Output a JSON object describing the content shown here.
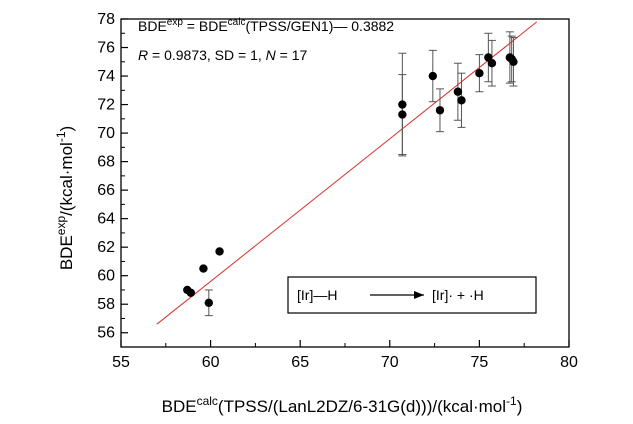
{
  "chart_data": {
    "type": "scatter",
    "xlim": [
      55,
      80
    ],
    "ylim": [
      55,
      78
    ],
    "x_ticks": [
      55,
      60,
      65,
      70,
      75,
      80
    ],
    "y_ticks": [
      56,
      58,
      60,
      62,
      64,
      66,
      68,
      70,
      72,
      74,
      76,
      78
    ],
    "xlabel": {
      "main": "BDE",
      "sup": "calc",
      "rest": "(TPSS/(LanL2DZ/6-31G(d)))/(kcal·mol",
      "unit_sup": "-1",
      "end": ")"
    },
    "ylabel": {
      "main": "BDE",
      "sup": "exp",
      "rest": "/(kcal·mol",
      "unit_sup": "-1",
      "end": ")"
    },
    "equation": {
      "lhs": "BDE",
      "lhs_sup": "exp",
      "eq": " = BDE",
      "rhs_sup": "calc",
      "rhs": "(TPSS/GEN1)— 0.3882"
    },
    "stats": {
      "r_label": "R",
      "r_value": " = 0.9873, SD = 1, ",
      "n_label": "N",
      "n_value": " = 17"
    },
    "fit_line": {
      "x": [
        57,
        78.2
      ],
      "y": [
        56.6,
        77.8
      ],
      "color": "#d9302a"
    },
    "series": [
      {
        "points": [
          {
            "x": 58.7,
            "y": 59.0
          },
          {
            "x": 58.9,
            "y": 58.8
          },
          {
            "x": 59.6,
            "y": 60.5
          },
          {
            "x": 59.9,
            "y": 58.1,
            "err": 0.9
          },
          {
            "x": 60.5,
            "y": 61.7
          },
          {
            "x": 70.7,
            "y": 72.0,
            "err": 3.6
          },
          {
            "x": 70.7,
            "y": 71.3,
            "err": 2.8
          },
          {
            "x": 72.4,
            "y": 74.0,
            "err": 1.8
          },
          {
            "x": 72.8,
            "y": 71.6,
            "err": 1.5
          },
          {
            "x": 73.8,
            "y": 72.9,
            "err": 2.0
          },
          {
            "x": 74.0,
            "y": 72.3,
            "err": 1.9
          },
          {
            "x": 75.0,
            "y": 74.2,
            "err": 1.3
          },
          {
            "x": 75.5,
            "y": 75.3,
            "err": 1.7
          },
          {
            "x": 75.7,
            "y": 74.9,
            "err": 1.6
          },
          {
            "x": 76.7,
            "y": 75.3,
            "err": 1.8
          },
          {
            "x": 76.8,
            "y": 75.2,
            "err": 1.6
          },
          {
            "x": 76.9,
            "y": 75.0,
            "err": 1.7
          }
        ]
      }
    ],
    "reaction": {
      "reactant": "[Ir]—H",
      "product": "[Ir]· + ·H"
    }
  }
}
